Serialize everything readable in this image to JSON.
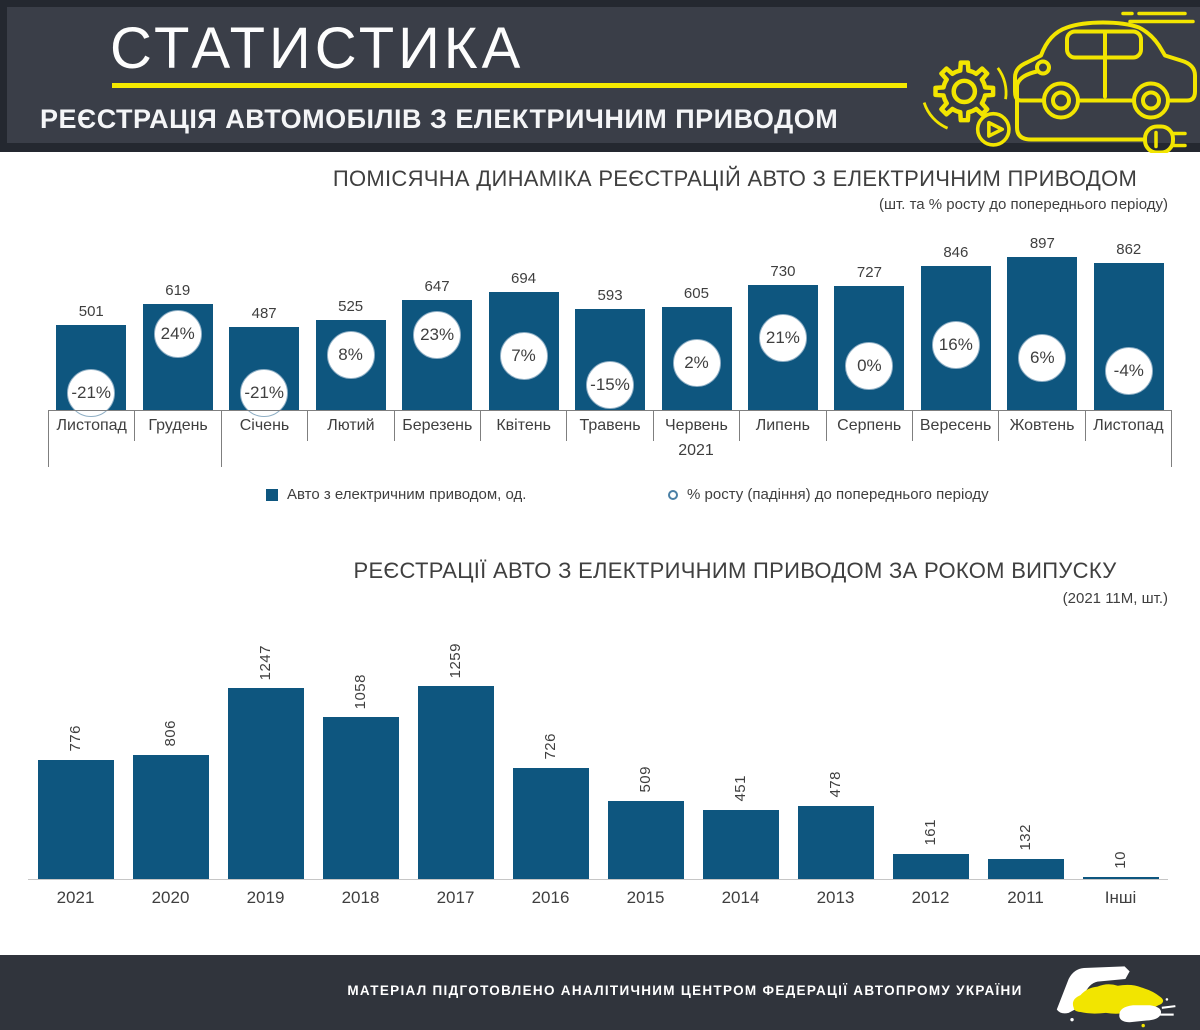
{
  "header": {
    "title": "СТАТИСТИКА",
    "subtitle": "РЕЄСТРАЦІЯ АВТОМОБІЛІВ З ЕЛЕКТРИЧНИМ ПРИВОДОМ"
  },
  "chart_data": [
    {
      "type": "bar",
      "title": "ПОМІСЯЧНА ДИНАМІКА РЕЄСТРАЦІЙ АВТО З ЕЛЕКТРИЧНИМ ПРИВОДОМ",
      "subtitle": "(шт. та % росту до попереднього періоду)",
      "categories": [
        "Листопад",
        "Грудень",
        "Січень",
        "Лютий",
        "Березень",
        "Квітень",
        "Травень",
        "Червень",
        "Липень",
        "Серпень",
        "Вересень",
        "Жовтень",
        "Листопад"
      ],
      "year_label": "2021",
      "series": [
        {
          "name": "Авто з електричним приводом,  од.",
          "type": "bar",
          "values": [
            501,
            619,
            487,
            525,
            647,
            694,
            593,
            605,
            730,
            727,
            846,
            897,
            862
          ]
        },
        {
          "name": "% росту  (падіння) до попереднього періоду",
          "type": "scatter-percent",
          "values": [
            -21,
            24,
            -21,
            8,
            23,
            7,
            -15,
            2,
            21,
            0,
            16,
            6,
            -4
          ]
        }
      ],
      "bar_color": "#0E567F",
      "legend_position": "bottom",
      "grid": false
    },
    {
      "type": "bar",
      "title": "РЕЄСТРАЦІЇ АВТО З ЕЛЕКТРИЧНИМ ПРИВОДОМ ЗА РОКОМ ВИПУСКУ",
      "subtitle": "(2021 11M, шт.)",
      "categories": [
        "2021",
        "2020",
        "2019",
        "2018",
        "2017",
        "2016",
        "2015",
        "2014",
        "2013",
        "2012",
        "2011",
        "Інші"
      ],
      "values": [
        776,
        806,
        1247,
        1058,
        1259,
        726,
        509,
        451,
        478,
        161,
        132,
        10
      ],
      "bar_color": "#0E567F",
      "grid": false
    }
  ],
  "footer": {
    "text": "МАТЕРІАЛ ПІДГОТОВЛЕНО АНАЛІТИЧНИМ ЦЕНТРОМ ФЕДЕРАЦІЇ АВТОПРОМУ УКРАЇНИ"
  },
  "colors": {
    "bar_blue": "#0E567F",
    "accent_yellow": "#F2E500",
    "header_bg": "#3A3E48",
    "header_frame": "#242830",
    "footer_bg": "#30343C",
    "text_dark": "#3F3F3F"
  }
}
